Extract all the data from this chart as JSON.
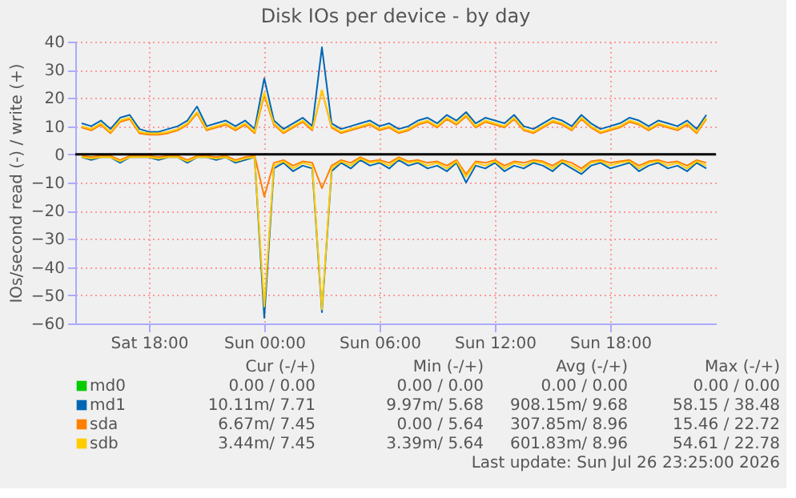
{
  "chart_data": {
    "type": "line",
    "title": "Disk IOs per device - by day",
    "ylabel": "IOs/second read (-) / write (+)",
    "x": [
      "2026-07-25T14:30",
      "2026-07-25T15:00",
      "2026-07-25T15:30",
      "2026-07-25T16:00",
      "2026-07-25T16:30",
      "2026-07-25T17:00",
      "2026-07-25T17:30",
      "2026-07-25T18:00",
      "2026-07-25T18:30",
      "2026-07-25T19:00",
      "2026-07-25T19:30",
      "2026-07-25T20:00",
      "2026-07-25T20:30",
      "2026-07-25T21:00",
      "2026-07-25T21:30",
      "2026-07-25T22:00",
      "2026-07-25T22:30",
      "2026-07-25T23:00",
      "2026-07-25T23:30",
      "2026-07-26T00:00",
      "2026-07-26T00:30",
      "2026-07-26T01:00",
      "2026-07-26T01:30",
      "2026-07-26T02:00",
      "2026-07-26T02:30",
      "2026-07-26T03:00",
      "2026-07-26T03:30",
      "2026-07-26T04:00",
      "2026-07-26T04:30",
      "2026-07-26T05:00",
      "2026-07-26T05:30",
      "2026-07-26T06:00",
      "2026-07-26T06:30",
      "2026-07-26T07:00",
      "2026-07-26T07:30",
      "2026-07-26T08:00",
      "2026-07-26T08:30",
      "2026-07-26T09:00",
      "2026-07-26T09:30",
      "2026-07-26T10:00",
      "2026-07-26T10:30",
      "2026-07-26T11:00",
      "2026-07-26T11:30",
      "2026-07-26T12:00",
      "2026-07-26T12:30",
      "2026-07-26T13:00",
      "2026-07-26T13:30",
      "2026-07-26T14:00",
      "2026-07-26T14:30",
      "2026-07-26T15:00",
      "2026-07-26T15:30",
      "2026-07-26T16:00",
      "2026-07-26T16:30",
      "2026-07-26T17:00",
      "2026-07-26T17:30",
      "2026-07-26T18:00",
      "2026-07-26T18:30",
      "2026-07-26T19:00",
      "2026-07-26T19:30",
      "2026-07-26T20:00",
      "2026-07-26T20:30",
      "2026-07-26T21:00",
      "2026-07-26T21:30",
      "2026-07-26T22:00",
      "2026-07-26T22:30",
      "2026-07-26T23:00"
    ],
    "series": [
      {
        "name": "md0",
        "color": "#00cc00",
        "values": [
          null,
          null,
          null,
          null,
          null,
          null,
          null,
          null,
          null,
          null,
          null,
          null,
          null,
          null,
          null,
          null,
          null,
          null,
          null,
          null,
          null,
          null,
          null,
          null,
          null,
          null,
          null,
          null,
          null,
          null,
          null,
          null,
          null,
          null,
          null,
          null,
          null,
          null,
          null,
          null,
          null,
          null,
          null,
          null,
          null,
          null,
          null,
          null,
          null,
          null,
          null,
          null,
          null,
          null,
          null,
          null,
          null,
          null,
          null,
          null,
          null,
          null,
          null,
          null,
          null,
          null
        ]
      },
      {
        "name": "md1",
        "color": "#0066b3",
        "values": [
          11,
          10,
          12,
          9,
          13,
          14,
          9,
          8,
          8,
          9,
          10,
          12,
          17,
          10,
          11,
          12,
          10,
          12,
          9,
          27,
          12,
          9,
          11,
          13,
          10,
          38,
          11,
          9,
          10,
          11,
          12,
          10,
          11,
          9,
          10,
          12,
          13,
          11,
          14,
          12,
          15,
          11,
          13,
          12,
          11,
          14,
          10,
          9,
          11,
          13,
          12,
          10,
          14,
          11,
          9,
          10,
          11,
          13,
          12,
          10,
          12,
          11,
          10,
          12,
          9,
          14
        ]
      },
      {
        "color": "#0066b3",
        "values": [
          -1,
          -2,
          -1,
          -1,
          -3,
          -1,
          -1,
          -1,
          -2,
          -1,
          -1,
          -3,
          -1,
          -1,
          -2,
          -1,
          -3,
          -2,
          -1,
          -58,
          -5,
          -3,
          -6,
          -4,
          -5,
          -56,
          -6,
          -3,
          -5,
          -2,
          -4,
          -3,
          -5,
          -2,
          -4,
          -3,
          -5,
          -4,
          -6,
          -3,
          -10,
          -4,
          -5,
          -3,
          -6,
          -4,
          -5,
          -3,
          -4,
          -6,
          -3,
          -5,
          -7,
          -4,
          -3,
          -5,
          -4,
          -3,
          -6,
          -4,
          -3,
          -5,
          -4,
          -6,
          -3,
          -5
        ]
      },
      {
        "name": "sda",
        "color": "#ff8000",
        "values": [
          9.5,
          8.5,
          10.5,
          7.5,
          11.5,
          12.5,
          7.5,
          7,
          7,
          7.5,
          8.5,
          10.5,
          14.5,
          8.5,
          9.5,
          10.5,
          8.5,
          10.5,
          7.5,
          21,
          10.5,
          7.5,
          9.5,
          11.5,
          8.5,
          22.7,
          9.5,
          7.5,
          8.5,
          9.5,
          10.5,
          8.5,
          9.5,
          7.5,
          8.5,
          10.5,
          11.5,
          9.5,
          12.5,
          10.5,
          13.5,
          9.5,
          11.5,
          10.5,
          9.5,
          12.5,
          8.5,
          7.5,
          9.5,
          11.5,
          10.5,
          8.5,
          12.5,
          9.5,
          7.5,
          8.5,
          9.5,
          11.5,
          10.5,
          8.5,
          10.5,
          9.5,
          8.5,
          10.5,
          7.5,
          12.5
        ]
      },
      {
        "color": "#ff8000",
        "values": [
          -0.5,
          -1,
          -0.5,
          -0.5,
          -2,
          -0.5,
          -0.5,
          -0.5,
          -1,
          -0.5,
          -0.5,
          -2,
          -0.5,
          -0.5,
          -1,
          -0.5,
          -2,
          -1,
          -0.5,
          -15,
          -3,
          -2,
          -4,
          -2.5,
          -3,
          -12,
          -4,
          -2,
          -3,
          -1,
          -2.5,
          -2,
          -3,
          -1,
          -2.5,
          -2,
          -3,
          -2.5,
          -4,
          -2,
          -7,
          -2.5,
          -3,
          -2,
          -4,
          -2.5,
          -3,
          -2,
          -2.5,
          -4,
          -2,
          -3,
          -5,
          -2.5,
          -2,
          -3,
          -2.5,
          -2,
          -4,
          -2.5,
          -2,
          -3,
          -2.5,
          -4,
          -2,
          -3
        ]
      },
      {
        "name": "sdb",
        "color": "#ffcc00",
        "values": [
          10,
          9,
          11,
          8,
          12,
          13,
          8,
          7.5,
          7.5,
          8,
          9,
          11,
          15,
          9,
          10,
          11,
          9,
          11,
          8,
          22,
          11,
          8,
          10,
          12,
          9,
          22.8,
          10,
          8,
          9,
          10,
          11,
          9,
          10,
          8,
          9,
          11,
          12,
          10,
          13,
          11,
          14,
          10,
          12,
          11,
          10,
          13,
          9,
          8,
          10,
          12,
          11,
          9,
          13,
          10,
          8,
          9,
          10,
          12,
          11,
          9,
          11,
          10,
          9,
          11,
          8,
          13
        ]
      },
      {
        "color": "#ffcc00",
        "values": [
          -1,
          -1.5,
          -1,
          -1,
          -2.5,
          -1,
          -1,
          -1,
          -1.5,
          -1,
          -1,
          -2.5,
          -1,
          -1,
          -1.5,
          -1,
          -2.5,
          -1.5,
          -1,
          -54,
          -4,
          -2.5,
          -5,
          -3,
          -4,
          -55,
          -5,
          -2.5,
          -4,
          -1.5,
          -3,
          -2.5,
          -4,
          -1.5,
          -3,
          -2.5,
          -4,
          -3,
          -5,
          -2.5,
          -8,
          -3,
          -4,
          -2.5,
          -5,
          -3,
          -4,
          -2.5,
          -3,
          -5,
          -2.5,
          -4,
          -6,
          -3,
          -2.5,
          -4,
          -3,
          -2.5,
          -5,
          -3,
          -2.5,
          -4,
          -3,
          -5,
          -2.5,
          -4
        ]
      }
    ],
    "xlim": [
      "2026-07-25T14:10",
      "2026-07-26T23:30"
    ],
    "xticks": [
      {
        "value": "2026-07-25T18:00",
        "label": "Sat 18:00"
      },
      {
        "value": "2026-07-26T00:00",
        "label": "Sun 00:00"
      },
      {
        "value": "2026-07-26T06:00",
        "label": "Sun 06:00"
      },
      {
        "value": "2026-07-26T12:00",
        "label": "Sun 12:00"
      },
      {
        "value": "2026-07-26T18:00",
        "label": "Sun 18:00"
      }
    ],
    "ylim": [
      -60,
      40
    ],
    "yticks": [
      -60,
      -50,
      -40,
      -30,
      -20,
      -10,
      0,
      10,
      20,
      30,
      40
    ],
    "ref_lines": [
      {
        "axis": "y",
        "value": 0,
        "color": "#000000"
      }
    ],
    "grid": true,
    "legend": "bottom",
    "marker": "none",
    "line_style": "solid",
    "annotations": [
      "Cur (-/+)",
      "Min (-/+)",
      "Avg (-/+)",
      "Max (-/+)",
      "0.00 /      0.00",
      "0.00 /      0.00",
      "0.00 /      0.00",
      "0.00 /      0.00",
      "10.11m/      7.71",
      "9.97m/      5.68",
      "908.15m/      9.68",
      "58.15 /    38.48",
      "6.67m/      7.45",
      "0.00 /      5.64",
      "307.85m/      8.96",
      "15.46 /    22.72",
      "3.44m/      7.45",
      "3.39m/      5.64",
      "601.83m/      8.96",
      "54.61 /    22.78",
      "Last update: Sun Jul 26 23:25:00 2026"
    ]
  }
}
